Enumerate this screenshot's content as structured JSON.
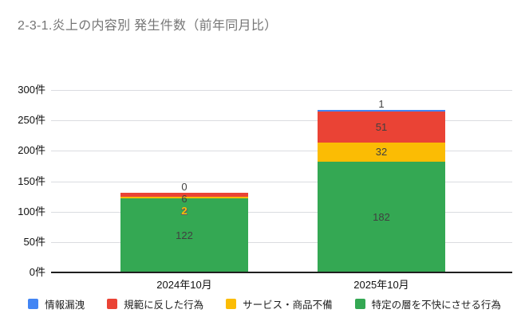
{
  "title": "2-3-1.炎上の内容別 発生件数（前年同月比）",
  "chart_data": {
    "type": "bar",
    "stacked": true,
    "title": "2-3-1.炎上の内容別 発生件数（前年同月比）",
    "categories": [
      "2024年10月",
      "2025年10月"
    ],
    "series": [
      {
        "name": "情報漏洩",
        "color": "#4285f4",
        "values": [
          0,
          1
        ]
      },
      {
        "name": "規範に反した行為",
        "color": "#ea4335",
        "values": [
          6,
          51
        ]
      },
      {
        "name": "サービス・商品不備",
        "color": "#fbbc04",
        "values": [
          2,
          32
        ]
      },
      {
        "name": "特定の層を不快にさせる行為",
        "color": "#34a853",
        "values": [
          122,
          182
        ]
      }
    ],
    "unit": "件",
    "ylim": [
      0,
      300
    ],
    "yticks": [
      0,
      50,
      100,
      150,
      200,
      250,
      300
    ],
    "ytick_labels": [
      "0件",
      "50件",
      "100件",
      "150件",
      "200件",
      "250件",
      "300件"
    ],
    "xlabel": "",
    "ylabel": "",
    "grid": true,
    "legend_position": "bottom",
    "value_label_color": "#404040"
  }
}
